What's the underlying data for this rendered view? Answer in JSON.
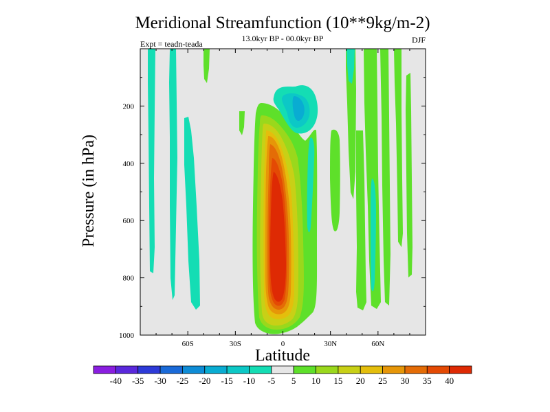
{
  "chart_data": {
    "type": "heatmap",
    "title": "Meridional Streamfunction (10**9kg/m-2)",
    "subtitle": "13.0kyr BP - 00.0kyr BP",
    "left_string": "Expt = teadn-teada",
    "right_string": "DJF",
    "xlabel": "Latitude",
    "ylabel": "Pressure (in hPa)",
    "xlim": [
      -90,
      90
    ],
    "ylim": [
      0,
      1000
    ],
    "y_inverted": true,
    "x_ticks": [
      {
        "value": -60,
        "label": "60S"
      },
      {
        "value": -30,
        "label": "30S"
      },
      {
        "value": 0,
        "label": "0"
      },
      {
        "value": 30,
        "label": "30N"
      },
      {
        "value": 60,
        "label": "60N"
      }
    ],
    "y_ticks": [
      {
        "value": 200,
        "label": "200"
      },
      {
        "value": 400,
        "label": "400"
      },
      {
        "value": 600,
        "label": "600"
      },
      {
        "value": 800,
        "label": "800"
      },
      {
        "value": 1000,
        "label": "1000"
      }
    ],
    "colorbar": {
      "labels": [
        "-40",
        "-35",
        "-30",
        "-25",
        "-20",
        "-15",
        "-10",
        "-5",
        "5",
        "10",
        "15",
        "20",
        "25",
        "30",
        "35",
        "40"
      ],
      "colors": [
        "#8a1ee0",
        "#5a28dc",
        "#2d3ad8",
        "#1a6ad8",
        "#0e8cd6",
        "#09acd2",
        "#0cc8c6",
        "#14ddb4",
        "#e6e6e6",
        "#5ee02a",
        "#9ad81c",
        "#c8d016",
        "#e4be0c",
        "#e69608",
        "#e46c06",
        "#e44a04",
        "#de2a04"
      ]
    },
    "background_color": "#e6e6e6",
    "features": [
      {
        "name": "tropical-positive-cell",
        "lat": -2,
        "p": 650,
        "peak": 40
      },
      {
        "name": "upper-negative-cell",
        "lat": 6,
        "p": 210,
        "peak": -20
      },
      {
        "name": "high-latitude-south-bands",
        "peak": -10
      },
      {
        "name": "high-latitude-north-bands",
        "peak": 10
      }
    ]
  }
}
